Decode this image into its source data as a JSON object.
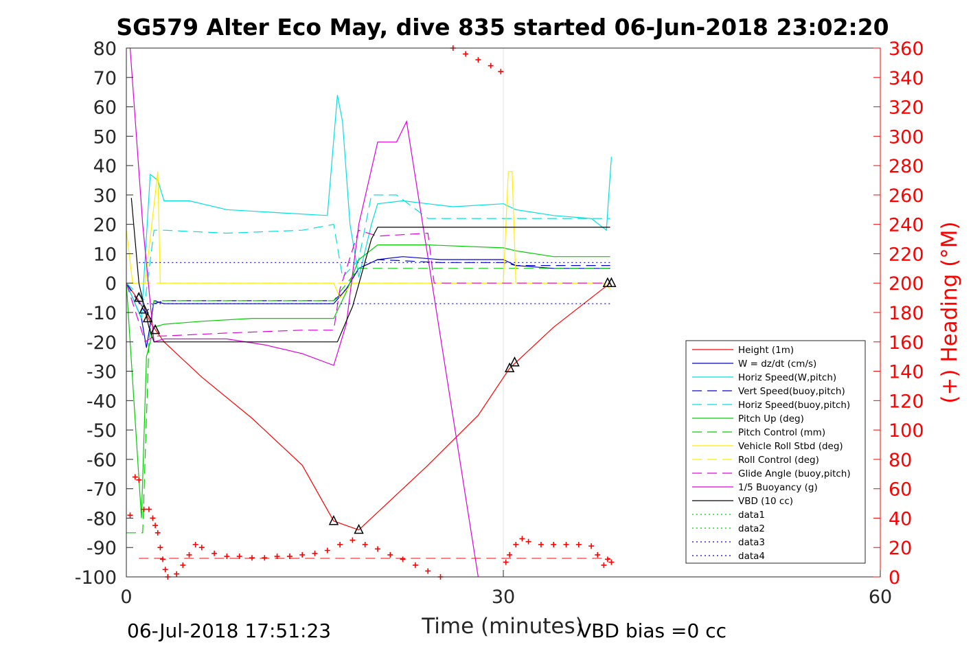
{
  "chart_data": {
    "type": "line",
    "title": "SG579 Alter Eco May, dive 835 started 06-Jun-2018 23:02:20",
    "xlabel": "Time (minutes)",
    "ylabel_right": "(+) Heading (°M)",
    "footer_left": "06-Jul-2018 17:51:23",
    "footer_right": "VBD bias =0 cc",
    "xlim": [
      0,
      60
    ],
    "ylim": [
      -100,
      80
    ],
    "ylim_right": [
      0,
      360
    ],
    "x_ticks": [
      "0",
      "30",
      "60"
    ],
    "x_tick_values": [
      0,
      30,
      60
    ],
    "y_ticks": [
      "80",
      "70",
      "60",
      "50",
      "40",
      "30",
      "20",
      "10",
      "0",
      "-10",
      "-20",
      "-30",
      "-40",
      "-50",
      "-60",
      "-70",
      "-80",
      "-90",
      "-100"
    ],
    "y_tick_values": [
      80,
      70,
      60,
      50,
      40,
      30,
      20,
      10,
      0,
      -10,
      -20,
      -30,
      -40,
      -50,
      -60,
      -70,
      -80,
      -90,
      -100
    ],
    "y_right_ticks": [
      "360",
      "340",
      "320",
      "300",
      "280",
      "260",
      "240",
      "220",
      "200",
      "180",
      "160",
      "140",
      "120",
      "100",
      "80",
      "60",
      "40",
      "20",
      "0"
    ],
    "y_right_tick_values": [
      360,
      340,
      320,
      300,
      280,
      260,
      240,
      220,
      200,
      180,
      160,
      140,
      120,
      100,
      80,
      60,
      40,
      20,
      0
    ],
    "grid": "x at 30 only",
    "legend_position": "lower-right inside",
    "series": [
      {
        "name": "Height (1m)",
        "color": "#ff0000",
        "dash": "solid",
        "x": [
          0,
          1,
          2,
          3,
          6,
          10,
          14,
          16.5,
          18.5,
          20,
          24,
          28,
          30.5,
          34,
          38.5
        ],
        "y": [
          0,
          -6,
          -14,
          -20,
          -32,
          -46,
          -62,
          -81,
          -84,
          -78,
          -62,
          -45,
          -29,
          -15,
          0
        ]
      },
      {
        "name": "W = dz/dt (cm/s)",
        "color": "#0000cc",
        "dash": "solid",
        "x": [
          0,
          1.2,
          1.6,
          2.2,
          3,
          6,
          10,
          14,
          16.5,
          17.5,
          18.5,
          20,
          22,
          25,
          30,
          31,
          34,
          38.5
        ],
        "y": [
          0,
          -12,
          -22,
          -6,
          -7,
          -7,
          -7,
          -7,
          -7,
          -2,
          5,
          8,
          9,
          8,
          8,
          6,
          5,
          5
        ]
      },
      {
        "name": "Horiz Speed(W,pitch)",
        "color": "#00e0e0",
        "dash": "solid",
        "x": [
          0,
          1.2,
          1.9,
          2.5,
          3,
          5,
          8,
          12,
          16,
          16.8,
          17.2,
          17.8,
          18.5,
          19.5,
          20,
          22,
          26,
          30,
          31,
          34,
          37,
          38.2,
          38.6
        ],
        "y": [
          0,
          -12,
          37,
          35,
          28,
          28,
          25,
          24,
          23,
          64,
          55,
          20,
          2,
          20,
          27,
          28,
          26,
          27,
          25,
          23,
          22,
          18,
          43
        ]
      },
      {
        "name": "Vert Speed(buoy,pitch)",
        "color": "#0000cc",
        "dash": "dash",
        "x": [
          0,
          1.5,
          2.2,
          3,
          8,
          14,
          16.5,
          17.5,
          18.5,
          20,
          25,
          30,
          31,
          38.5
        ],
        "y": [
          0,
          -10,
          -7,
          -6,
          -6,
          -6,
          -6,
          -2,
          5,
          8,
          7,
          7,
          6,
          6
        ]
      },
      {
        "name": "Horiz Speed(buoy,pitch)",
        "color": "#00e0e0",
        "dash": "dash",
        "x": [
          0,
          1.5,
          2.2,
          3,
          8,
          14,
          16.5,
          17.2,
          18.5,
          19.5,
          21.5,
          24,
          30,
          31,
          38.5
        ],
        "y": [
          0,
          -6,
          18,
          18,
          17,
          18,
          20,
          2,
          8,
          30,
          30,
          22,
          22,
          22,
          22
        ]
      },
      {
        "name": "Pitch Up (deg)",
        "color": "#00cc00",
        "dash": "solid",
        "x": [
          0,
          1.2,
          1.6,
          2.2,
          3,
          6,
          10,
          14,
          16.5,
          17.5,
          18.5,
          20,
          24,
          30,
          31,
          34,
          38.5
        ],
        "y": [
          0,
          -80,
          -25,
          -15,
          -14,
          -13,
          -12,
          -12,
          -12,
          -3,
          8,
          13,
          13,
          12,
          11,
          9,
          9
        ]
      },
      {
        "name": "Pitch Control (mm)",
        "color": "#00cc00",
        "dash": "dash",
        "x": [
          0,
          0.6,
          1.3,
          1.8,
          2.2,
          3,
          8,
          14,
          16.5,
          17,
          18.5,
          20,
          30,
          38.5
        ],
        "y": [
          -85,
          -85,
          -85,
          -20,
          -6,
          -6,
          -6,
          -6,
          -6,
          -3,
          5,
          5,
          5,
          5
        ]
      },
      {
        "name": "Vehicle Roll Stbd (deg)",
        "color": "#ffee00",
        "dash": "solid",
        "x": [
          0,
          0.5,
          1.5,
          2.5,
          2.7,
          3,
          8,
          16.5,
          17,
          18,
          20,
          30,
          30.4,
          30.7,
          31,
          38,
          38.5
        ],
        "y": [
          18,
          0,
          0,
          38,
          0,
          0,
          0,
          0,
          -5,
          0,
          0,
          0,
          38,
          38,
          0,
          0,
          -2
        ]
      },
      {
        "name": "Roll Control (deg)",
        "color": "#ffee00",
        "dash": "dash",
        "x": [
          0,
          2,
          3,
          38.5
        ],
        "y": [
          0,
          0,
          0,
          0
        ]
      },
      {
        "name": "Glide Angle (buoy,pitch)",
        "color": "#dd00dd",
        "dash": "dash",
        "x": [
          0,
          1.5,
          2.2,
          3,
          8,
          14,
          16.5,
          17,
          18.5,
          20,
          24,
          24.5,
          30,
          38.5
        ],
        "y": [
          0,
          -20,
          -18,
          -18,
          -17,
          -16,
          -16,
          -2,
          18,
          16,
          17,
          0,
          0,
          0
        ]
      },
      {
        "name": "1/5 Buoyancy (g)",
        "color": "#dd00dd",
        "dash": "solid",
        "x": [
          0.3,
          1.3,
          2.2,
          3,
          8,
          11,
          14,
          16.5,
          17.5,
          18.5,
          20,
          21.5,
          22.3,
          28
        ],
        "y": [
          80,
          20,
          -20,
          -19,
          -19,
          -21,
          -24,
          -28,
          -14,
          20,
          48,
          48,
          55,
          -100
        ]
      },
      {
        "name": "VBD (10 cc)",
        "color": "#000000",
        "dash": "solid",
        "x": [
          0.4,
          1,
          1.8,
          2.2,
          3,
          8,
          16.8,
          18,
          19.5,
          20,
          30,
          38.5
        ],
        "y": [
          29,
          0,
          -15,
          -20,
          -20,
          -20,
          -20,
          -8,
          15,
          19,
          19,
          19
        ]
      },
      {
        "name": "data1",
        "color": "#00cc00",
        "dash": "dot",
        "x": [],
        "y": []
      },
      {
        "name": "data2",
        "color": "#00cc00",
        "dash": "dot",
        "x": [],
        "y": []
      },
      {
        "name": "data3",
        "color": "#0000cc",
        "dash": "dot",
        "x": [
          1,
          38.5
        ],
        "y": [
          7,
          7
        ]
      },
      {
        "name": "data4",
        "color": "#0000cc",
        "dash": "dot",
        "x": [
          1,
          38.5
        ],
        "y": [
          -7,
          -7
        ]
      }
    ],
    "heading_series": {
      "color": "#ff0000",
      "marker": "+",
      "axis": "right",
      "reference_line": {
        "y": 12.6,
        "dash": "dash",
        "x": [
          1,
          38.5
        ]
      },
      "x": [
        0.3,
        0.7,
        1.0,
        1.4,
        1.8,
        2.1,
        2.3,
        2.5,
        2.7,
        2.9,
        3.1,
        3.3,
        4,
        4.5,
        5,
        5.5,
        6,
        7,
        8,
        9,
        10,
        11,
        12,
        13,
        14,
        15,
        16,
        17,
        18,
        19,
        20,
        21,
        22,
        23,
        24,
        25,
        26,
        27,
        28,
        29,
        29.8,
        30.2,
        30.5,
        31,
        31.5,
        32,
        33,
        34,
        35,
        36,
        37,
        37.5,
        38,
        38.3,
        38.6
      ],
      "y": [
        42,
        68,
        66,
        46,
        46,
        40,
        35,
        30,
        20,
        12,
        5,
        0,
        2,
        8,
        15,
        22,
        20,
        16,
        14,
        14,
        13,
        13,
        14,
        14,
        15,
        16,
        18,
        22,
        25,
        22,
        19,
        15,
        12,
        8,
        4,
        0,
        360,
        356,
        352,
        348,
        344,
        10,
        15,
        22,
        26,
        24,
        22,
        22,
        22,
        22,
        21,
        15,
        8,
        12,
        10
      ]
    },
    "event_markers": {
      "color": "#000000",
      "x": [
        1.0,
        1.4,
        1.7,
        2.3,
        16.5,
        18.5,
        30.5,
        30.9,
        38.3,
        38.6
      ],
      "y": [
        -5,
        -9,
        -12,
        -16,
        -81,
        -84,
        -29,
        -27,
        0,
        0
      ]
    }
  }
}
